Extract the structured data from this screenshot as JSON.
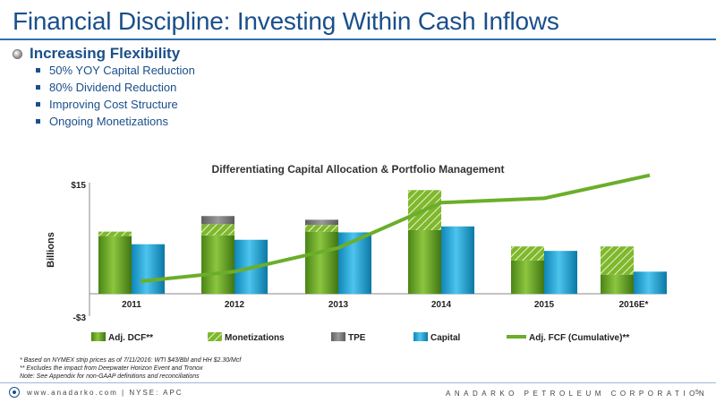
{
  "slide": {
    "title": "Financial Discipline: Investing Within Cash Inflows",
    "bullet": "Increasing Flexibility",
    "sub_bullets": [
      "50% YOY Capital Reduction",
      "80% Dividend Reduction",
      "Improving Cost Structure",
      "Ongoing Monetizations"
    ]
  },
  "chart_data": {
    "type": "bar",
    "title": "Differentiating Capital Allocation & Portfolio Management",
    "ylabel": "Billions",
    "ylim": [
      -3,
      15
    ],
    "y_ticks": [
      "$15",
      "-$3"
    ],
    "categories": [
      "2011",
      "2012",
      "2013",
      "2014",
      "2015",
      "2016E*"
    ],
    "stacked_series": [
      {
        "name": "Adj. DCF**",
        "values": [
          7.8,
          7.9,
          8.4,
          8.6,
          4.5,
          2.6
        ],
        "color": "#5e9b1e"
      },
      {
        "name": "Monetizations",
        "values": [
          0.6,
          1.5,
          0.9,
          5.4,
          1.9,
          3.8
        ],
        "color": "#7fb82c"
      },
      {
        "name": "TPE",
        "values": [
          0,
          1.1,
          0.7,
          0,
          0,
          0
        ],
        "color": "#7a7a7a"
      }
    ],
    "capital_series": {
      "name": "Capital",
      "values": [
        6.7,
        7.3,
        8.3,
        9.1,
        5.8,
        3.0
      ],
      "color": "#1ba3d6"
    },
    "line_series": {
      "name": "Adj. FCF (Cumulative)**",
      "values": [
        1.7,
        3.0,
        6.2,
        12.3,
        12.9,
        16.0
      ],
      "color": "#6bae2a"
    },
    "legend": [
      "Adj. DCF**",
      "Monetizations",
      "TPE",
      "Capital",
      "Adj. FCF (Cumulative)**"
    ],
    "legend_position": "bottom"
  },
  "footnotes": [
    "* Based on NYMEX strip prices as of 7/11/2016: WTI $43/Bbl and HH $2.30/Mcf",
    "** Excludes the impact from Deepwater Horizon Event and Tronox",
    "Note: See Appendix for non-GAAP definitions and reconciliations"
  ],
  "footer": {
    "site": "www.anadarko.com | NYSE: APC",
    "company": "ANADARKO PETROLEUM CORPORATION",
    "page": "5"
  }
}
